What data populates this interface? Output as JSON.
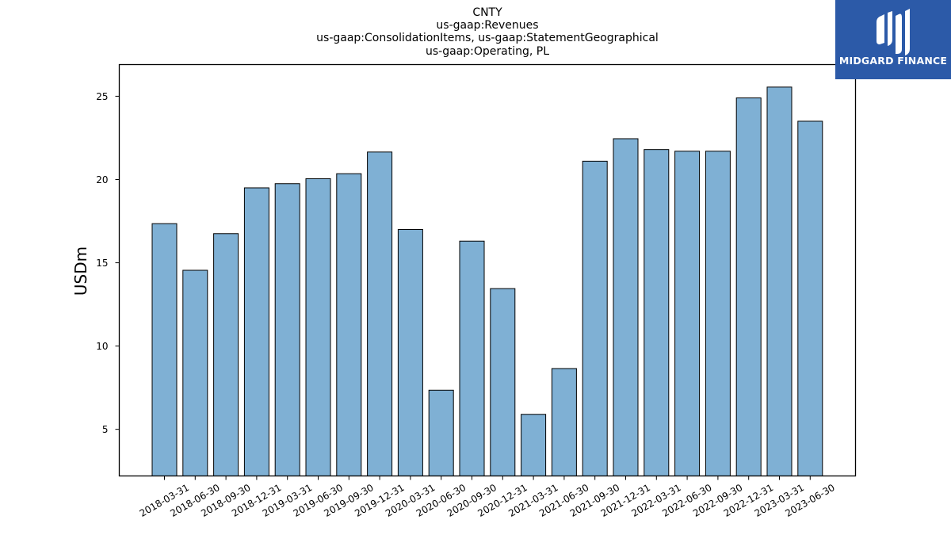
{
  "chart_data": {
    "type": "bar",
    "title_lines": [
      "CNTY",
      "us-gaap:Revenues",
      "us-gaap:ConsolidationItems, us-gaap:StatementGeographical",
      "us-gaap:Operating, PL"
    ],
    "xlabel": "",
    "ylabel": "USDm",
    "categories": [
      "2018-03-31",
      "2018-06-30",
      "2018-09-30",
      "2018-12-31",
      "2019-03-31",
      "2019-06-30",
      "2019-09-30",
      "2019-12-31",
      "2020-03-31",
      "2020-06-30",
      "2020-09-30",
      "2020-12-31",
      "2021-03-31",
      "2021-06-30",
      "2021-09-30",
      "2021-12-31",
      "2022-03-31",
      "2022-06-30",
      "2022-09-30",
      "2022-12-31",
      "2023-03-31",
      "2023-06-30"
    ],
    "values": [
      17.35,
      14.55,
      16.75,
      19.5,
      19.75,
      20.05,
      20.35,
      21.65,
      17.0,
      7.35,
      16.3,
      13.45,
      5.9,
      8.65,
      21.1,
      22.45,
      21.8,
      21.7,
      21.7,
      24.9,
      25.55,
      23.5
    ],
    "ylim": [
      2.2,
      26.9
    ],
    "yticks": [
      5,
      10,
      15,
      20,
      25
    ],
    "grid": false,
    "legend": "none",
    "bar_color": "#7fb0d4",
    "bar_edge_color": "#000000"
  },
  "logo": {
    "text": "MIDGARD FINANCE",
    "background": "#2c5aa8"
  }
}
